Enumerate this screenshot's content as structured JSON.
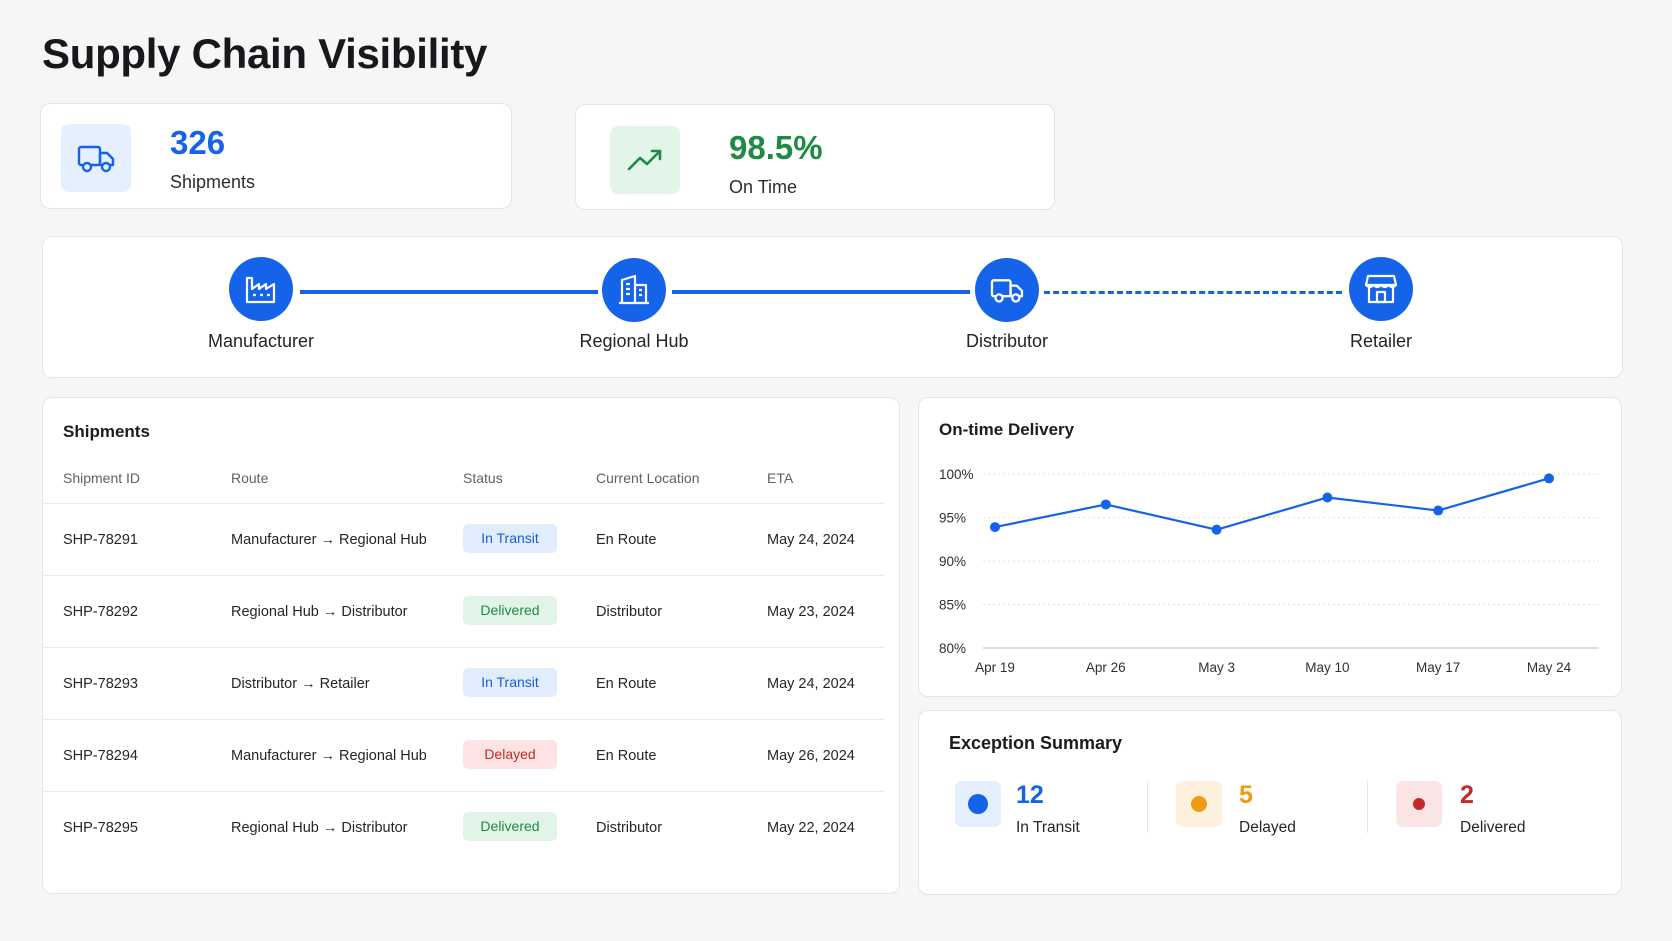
{
  "page": {
    "title": "Supply Chain Visibility"
  },
  "kpis": {
    "shipments": {
      "value": "326",
      "label": "Shipments",
      "icon": "truck-icon",
      "color": "#1463e8"
    },
    "on_time": {
      "value": "98.5%",
      "label": "On Time",
      "icon": "trending-up-icon",
      "color": "#1f8a45"
    }
  },
  "pipeline": {
    "stages": [
      {
        "label": "Manufacturer",
        "icon": "factory-icon"
      },
      {
        "label": "Regional Hub",
        "icon": "building-icon"
      },
      {
        "label": "Distributor",
        "icon": "truck-icon"
      },
      {
        "label": "Retailer",
        "icon": "store-icon"
      }
    ],
    "connectors": [
      "solid",
      "solid",
      "dashed"
    ]
  },
  "shipments_table": {
    "title": "Shipments",
    "columns": [
      "Shipment ID",
      "Route",
      "Status",
      "Current Location",
      "ETA"
    ],
    "rows": [
      {
        "id": "SHP-78291",
        "route": "Manufacturer → Regional Hub",
        "status": "In Transit",
        "location": "En Route",
        "eta": "May 24, 2024"
      },
      {
        "id": "SHP-78292",
        "route": "Regional Hub → Distributor",
        "status": "Delivered",
        "location": "Distributor",
        "eta": "May 23, 2024"
      },
      {
        "id": "SHP-78293",
        "route": "Distributor → Retailer",
        "status": "In Transit",
        "location": "En Route",
        "eta": "May 24, 2024"
      },
      {
        "id": "SHP-78294",
        "route": "Manufacturer → Regional Hub",
        "status": "Delayed",
        "location": "En Route",
        "eta": "May 26, 2024"
      },
      {
        "id": "SHP-78295",
        "route": "Regional Hub → Distributor",
        "status": "Delivered",
        "location": "Distributor",
        "eta": "May 22, 2024"
      }
    ]
  },
  "chart_data": {
    "type": "line",
    "title": "On-time Delivery",
    "categories": [
      "Apr 19",
      "Apr 26",
      "May 3",
      "May 10",
      "May 17",
      "May 24"
    ],
    "series": [
      {
        "values": [
          93.9,
          96.5,
          93.6,
          97.3,
          95.8,
          99.5
        ]
      }
    ],
    "y_ticks": [
      80,
      85,
      90,
      95,
      100
    ],
    "y_tick_labels": [
      "80%",
      "85%",
      "90%",
      "95%",
      "100%"
    ],
    "ylim": [
      80,
      100
    ],
    "xlabel": "",
    "ylabel": "",
    "grid": true,
    "line_color": "#1463e8"
  },
  "exceptions": {
    "title": "Exception Summary",
    "items": [
      {
        "count": "12",
        "label": "In Transit",
        "color": "#1463e8",
        "bg": "#e6effd"
      },
      {
        "count": "5",
        "label": "Delayed",
        "color": "#ee9a12",
        "bg": "#fdf0dc"
      },
      {
        "count": "2",
        "label": "Delivered",
        "color": "#c42828",
        "bg": "#fbe4e4"
      }
    ]
  }
}
